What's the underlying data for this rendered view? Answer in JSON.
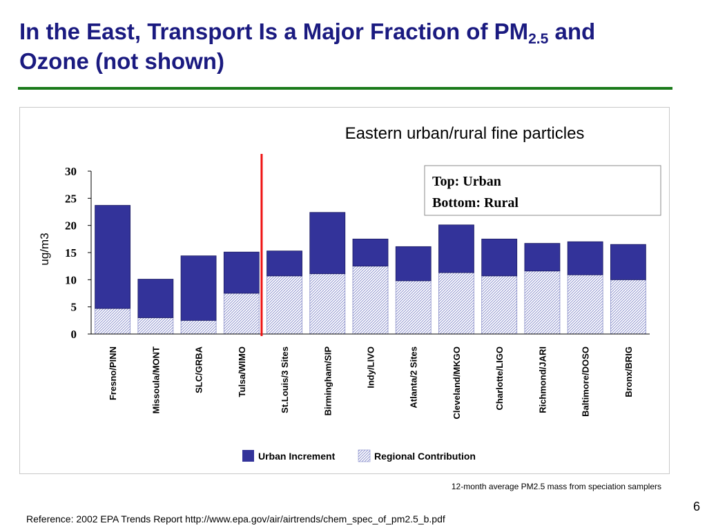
{
  "slide": {
    "title_part1": "In the East, Transport Is a Major Fraction of PM",
    "title_sub": "2.5",
    "title_part2": " and",
    "title_line2": "Ozone (not shown)",
    "footnote": "12-month average PM2.5 mass from speciation samplers",
    "page_number": "6",
    "reference": "Reference: 2002 EPA Trends Report http://www.epa.gov/air/airtrends/chem_spec_of_pm2.5_b.pdf"
  },
  "chart_data": {
    "type": "bar",
    "stacked": true,
    "title": "Eastern urban/rural fine particles",
    "ylabel": "ug/m3",
    "ylim": [
      0,
      30
    ],
    "yticks": [
      0,
      5,
      10,
      15,
      20,
      25,
      30
    ],
    "categories": [
      "Fresno/PINN",
      "Missoula/MONT",
      "SLC/GRBA",
      "Tulsa/WIMO",
      "St.Louis/3 Sites",
      "Birmingham/SIP",
      "Indy/LIVO",
      "Atlanta/2 Sites",
      "Cleveland/MKGO",
      "Charlotte/LIGO",
      "Richmond/JARI",
      "Baltimore/DOSO",
      "Bronx/BRIG"
    ],
    "series": [
      {
        "name": "Regional Contribution",
        "pattern": "hatched",
        "values": [
          4.7,
          3.0,
          2.5,
          7.5,
          10.7,
          11.1,
          12.5,
          9.8,
          11.3,
          10.7,
          11.6,
          10.9,
          10.0
        ]
      },
      {
        "name": "Urban Increment",
        "color": "#33339a",
        "values": [
          19.0,
          7.1,
          11.9,
          7.6,
          4.6,
          11.3,
          5.0,
          6.3,
          8.8,
          6.8,
          5.1,
          6.1,
          6.5
        ]
      }
    ],
    "annotation": {
      "line1": "Top: Urban",
      "line2": "Bottom: Rural"
    },
    "divider_color": "#ee1111",
    "divider_after_category": "Tulsa/WIMO",
    "legend": [
      "Urban Increment",
      "Regional Contribution"
    ],
    "legend_position": "bottom",
    "grid": false
  }
}
